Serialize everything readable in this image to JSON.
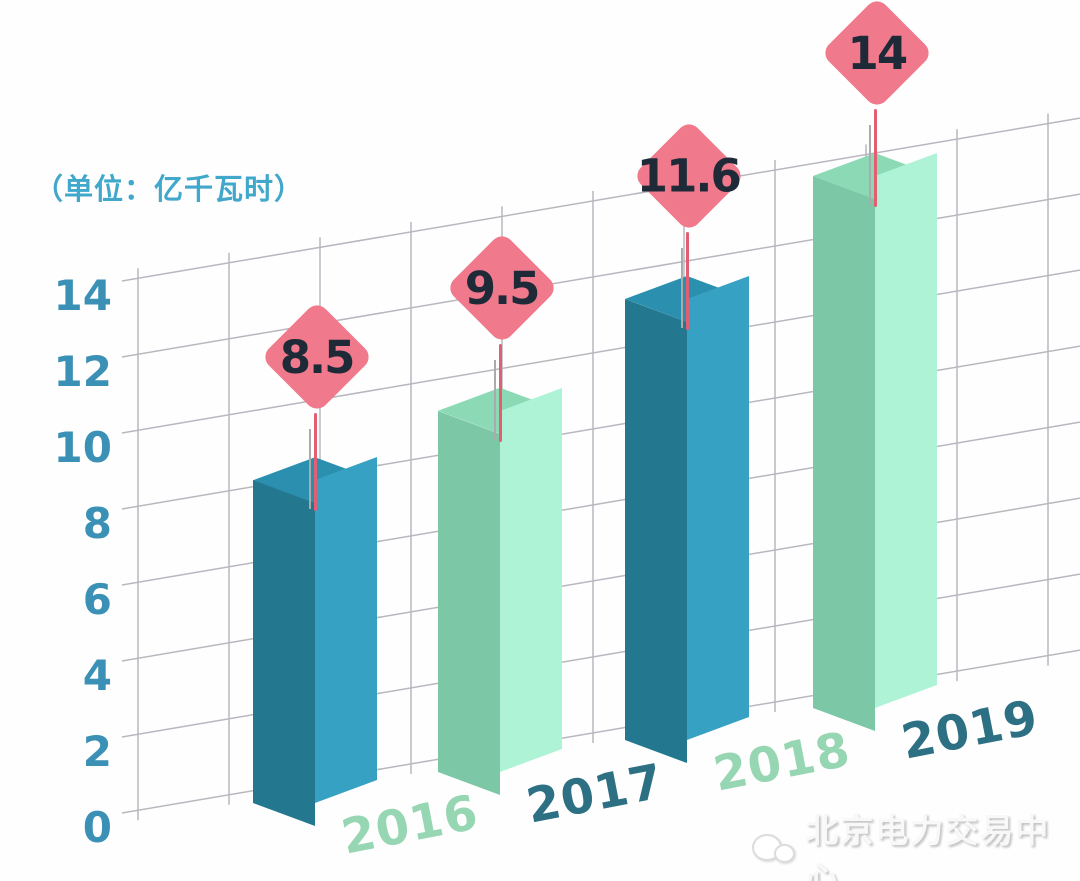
{
  "unit_label": "（单位：亿千瓦时）",
  "watermark": {
    "icon": "wechat-icon",
    "source_name": "北京电力交易中心"
  },
  "chart_data": {
    "type": "bar",
    "title": "",
    "xlabel": "",
    "ylabel": "（单位：亿千瓦时）",
    "unit": "亿千瓦时",
    "categories": [
      "2016",
      "2017",
      "2018",
      "2019"
    ],
    "values": [
      8.5,
      9.5,
      11.6,
      14
    ],
    "value_labels": [
      "8.5",
      "9.5",
      "11.6",
      "14"
    ],
    "yticks": [
      0,
      2,
      4,
      6,
      8,
      10,
      12,
      14
    ],
    "ylim": [
      0,
      14
    ],
    "grid": true,
    "legend": false,
    "style": "3d-oblique-bars-with-diamond-value-tags",
    "colors": {
      "background": "#fefefe",
      "grid_line": "#b7b7bf",
      "axis_text": "#3b90b6",
      "unit_text": "#41a8cc",
      "bar_blue": {
        "top": "#2b90b0",
        "left": "#23788f",
        "right": "#37a1c4"
      },
      "bar_green": {
        "top": "#8cd9b6",
        "left": "#7cc8a6",
        "right": "#aef3d6"
      },
      "bar_color_sequence": [
        "blue",
        "green",
        "blue",
        "green"
      ],
      "value_diamond_bg": "#f0798c",
      "value_diamond_text": "#1e2a38",
      "stem_red": "#e25f72",
      "stem_gray": "#ababab",
      "year_label_light": "#97d6b2",
      "year_label_dark": "#2d7084",
      "year_color_sequence": [
        "light",
        "dark",
        "light",
        "dark"
      ]
    }
  }
}
